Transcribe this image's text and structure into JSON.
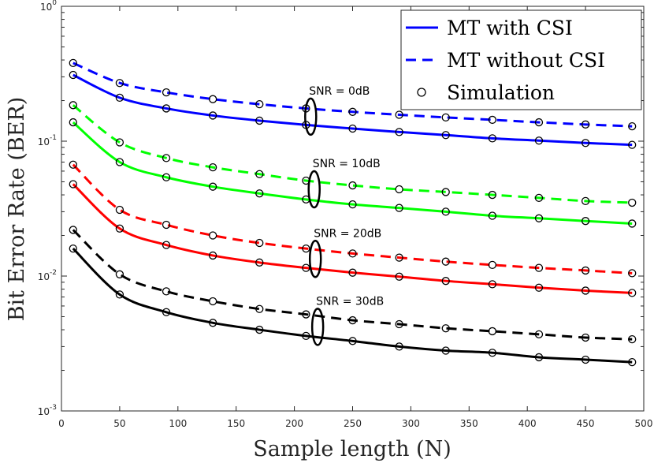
{
  "chart_data": {
    "type": "line",
    "title": "",
    "xlabel": "Sample length (N)",
    "ylabel": "Bit Error Rate (BER)",
    "xlim": [
      0,
      500
    ],
    "ylim": [
      0.001,
      1
    ],
    "yscale": "log",
    "x_ticks": [
      0,
      50,
      100,
      150,
      200,
      250,
      300,
      350,
      400,
      450,
      500
    ],
    "x_tick_labels": [
      "0",
      "50",
      "100",
      "150",
      "200",
      "250",
      "300",
      "350",
      "400",
      "450",
      "500"
    ],
    "y_ticks": [
      0.001,
      0.01,
      0.1,
      1
    ],
    "y_tick_labels": [
      {
        "base": "10",
        "exp": "-3"
      },
      {
        "base": "10",
        "exp": "-2"
      },
      {
        "base": "10",
        "exp": "-1"
      },
      {
        "base": "10",
        "exp": "0"
      }
    ],
    "grid": false,
    "legend_position": "top-right",
    "legend": [
      {
        "label": "MT with CSI",
        "style": "solid"
      },
      {
        "label": "MT without CSI",
        "style": "dashed"
      },
      {
        "label": "Simulation",
        "style": "marker"
      }
    ],
    "x": [
      10,
      50,
      90,
      130,
      170,
      210,
      250,
      290,
      330,
      370,
      410,
      450,
      490
    ],
    "series": [
      {
        "name": "SNR = 0dB, MT with CSI",
        "snr": "0dB",
        "style": "solid",
        "color": "#0000ff",
        "values": [
          0.31,
          0.21,
          0.175,
          0.155,
          0.142,
          0.132,
          0.124,
          0.117,
          0.111,
          0.105,
          0.101,
          0.097,
          0.094
        ],
        "sim": [
          0.31,
          0.21,
          0.175,
          0.155,
          0.142,
          0.132,
          0.124,
          0.117,
          0.111,
          0.105,
          0.101,
          0.097,
          0.094
        ]
      },
      {
        "name": "SNR = 0dB, MT without CSI",
        "snr": "0dB",
        "style": "dashed",
        "color": "#0000ff",
        "values": [
          0.38,
          0.27,
          0.23,
          0.205,
          0.188,
          0.175,
          0.165,
          0.157,
          0.15,
          0.144,
          0.138,
          0.133,
          0.129
        ],
        "sim": [
          0.38,
          0.27,
          0.23,
          0.205,
          0.188,
          0.175,
          0.165,
          0.157,
          0.15,
          0.144,
          0.138,
          0.133,
          0.129
        ]
      },
      {
        "name": "SNR = 10dB, MT with CSI",
        "snr": "10dB",
        "style": "solid",
        "color": "#00ff00",
        "values": [
          0.138,
          0.07,
          0.054,
          0.046,
          0.041,
          0.037,
          0.034,
          0.032,
          0.03,
          0.028,
          0.0268,
          0.0256,
          0.0245
        ],
        "sim": [
          0.138,
          0.07,
          0.054,
          0.046,
          0.041,
          0.037,
          0.034,
          0.032,
          0.03,
          0.028,
          0.0268,
          0.0256,
          0.0245
        ]
      },
      {
        "name": "SNR = 10dB, MT without CSI",
        "snr": "10dB",
        "style": "dashed",
        "color": "#00ff00",
        "values": [
          0.185,
          0.098,
          0.075,
          0.064,
          0.057,
          0.051,
          0.047,
          0.044,
          0.042,
          0.04,
          0.038,
          0.036,
          0.035
        ],
        "sim": [
          0.185,
          0.098,
          0.075,
          0.064,
          0.057,
          0.051,
          0.047,
          0.044,
          0.042,
          0.04,
          0.038,
          0.036,
          0.035
        ]
      },
      {
        "name": "SNR = 20dB, MT with CSI",
        "snr": "20dB",
        "style": "solid",
        "color": "#ff0000",
        "values": [
          0.048,
          0.0225,
          0.017,
          0.0142,
          0.0126,
          0.0115,
          0.0106,
          0.0099,
          0.0092,
          0.0087,
          0.0082,
          0.0078,
          0.0075
        ],
        "sim": [
          0.048,
          0.0225,
          0.017,
          0.0142,
          0.0126,
          0.0115,
          0.0106,
          0.0099,
          0.0092,
          0.0087,
          0.0082,
          0.0078,
          0.0075
        ]
      },
      {
        "name": "SNR = 20dB, MT without CSI",
        "snr": "20dB",
        "style": "dashed",
        "color": "#ff0000",
        "values": [
          0.067,
          0.031,
          0.024,
          0.02,
          0.0176,
          0.016,
          0.0147,
          0.0137,
          0.0128,
          0.0121,
          0.0115,
          0.011,
          0.0105
        ],
        "sim": [
          0.067,
          0.031,
          0.024,
          0.02,
          0.0176,
          0.016,
          0.0147,
          0.0137,
          0.0128,
          0.0121,
          0.0115,
          0.011,
          0.0105
        ]
      },
      {
        "name": "SNR = 30dB, MT with CSI",
        "snr": "30dB",
        "style": "solid",
        "color": "#000000",
        "values": [
          0.016,
          0.0073,
          0.0054,
          0.0045,
          0.004,
          0.0036,
          0.0033,
          0.003,
          0.0028,
          0.0027,
          0.0025,
          0.0024,
          0.0023
        ],
        "sim": [
          0.016,
          0.0073,
          0.0054,
          0.0045,
          0.004,
          0.0036,
          0.0033,
          0.003,
          0.0028,
          0.0027,
          0.0025,
          0.0024,
          0.0023
        ]
      },
      {
        "name": "SNR = 30dB, MT without CSI",
        "snr": "30dB",
        "style": "dashed",
        "color": "#000000",
        "values": [
          0.022,
          0.0103,
          0.0077,
          0.0065,
          0.0057,
          0.0052,
          0.0047,
          0.0044,
          0.0041,
          0.0039,
          0.0037,
          0.0035,
          0.0034
        ],
        "sim": [
          0.022,
          0.0103,
          0.0077,
          0.0065,
          0.0057,
          0.0052,
          0.0047,
          0.0044,
          0.0041,
          0.0039,
          0.0037,
          0.0035,
          0.0034
        ]
      }
    ],
    "annotations": [
      {
        "text": "SNR = 0dB",
        "x": 214,
        "y": 0.152
      },
      {
        "text": "SNR = 10dB",
        "x": 217,
        "y": 0.044
      },
      {
        "text": "SNR = 20dB",
        "x": 218,
        "y": 0.0134
      },
      {
        "text": "SNR = 30dB",
        "x": 220,
        "y": 0.0042
      }
    ]
  }
}
